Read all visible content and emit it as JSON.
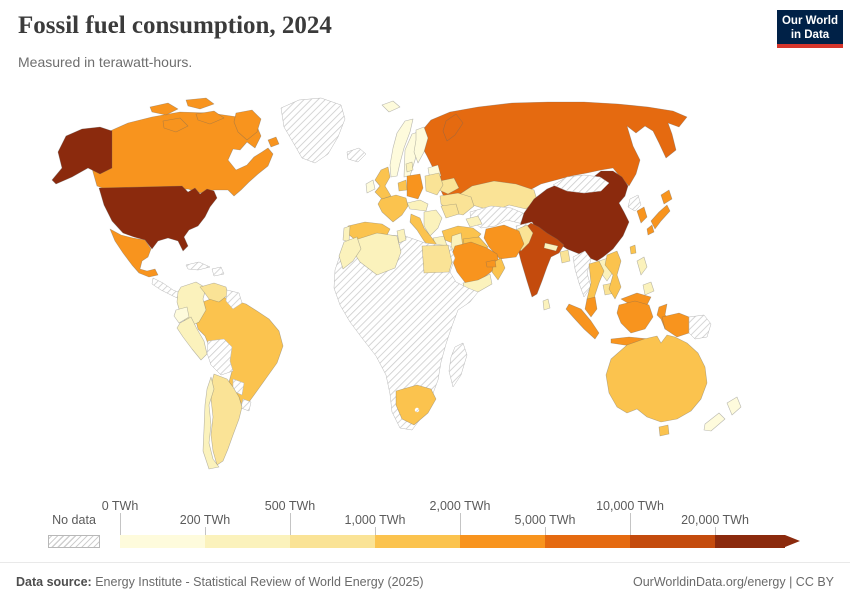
{
  "header": {
    "title": "Fossil fuel consumption, 2024",
    "subtitle": "Measured in terawatt-hours.",
    "logo": {
      "line1": "Our World",
      "line2": "in Data",
      "bg_color": "#002147",
      "accent_color": "#D6352B"
    }
  },
  "chart_data": {
    "type": "choropleth",
    "title": "Fossil fuel consumption, 2024",
    "subtitle": "Measured in terawatt-hours.",
    "unit": "TWh",
    "legend": {
      "no_data_label": "No data",
      "tick_labels": [
        "0 TWh",
        "200 TWh",
        "500 TWh",
        "1,000 TWh",
        "2,000 TWh",
        "5,000 TWh",
        "10,000 TWh",
        "20,000 TWh"
      ],
      "bin_ranges": [
        "0–200",
        "200–500",
        "500–1,000",
        "1,000–2,000",
        "2,000–5,000",
        "5,000–10,000",
        "10,000–20,000",
        "20,000+"
      ],
      "bin_colors": [
        "#FEFBDC",
        "#FBF2BC",
        "#FAE396",
        "#FBC34E",
        "#F8941E",
        "#E56A10",
        "#C44B0D",
        "#8B2A0D"
      ],
      "no_data_hatch_color": "#cfcfcf",
      "open_ended_arrow": true
    },
    "countries": [
      {
        "id": "usa",
        "name": "United States",
        "bin": 7
      },
      {
        "id": "canada",
        "name": "Canada",
        "bin": 4
      },
      {
        "id": "mexico",
        "name": "Mexico",
        "bin": 4
      },
      {
        "id": "central-america",
        "name": "Central America",
        "bin": null
      },
      {
        "id": "cuba",
        "name": "Cuba",
        "bin": null
      },
      {
        "id": "hispaniola",
        "name": "Hispaniola",
        "bin": null
      },
      {
        "id": "greenland",
        "name": "Greenland",
        "bin": null
      },
      {
        "id": "iceland",
        "name": "Iceland",
        "bin": null
      },
      {
        "id": "brazil",
        "name": "Brazil",
        "bin": 3
      },
      {
        "id": "colombia",
        "name": "Colombia",
        "bin": 1
      },
      {
        "id": "venezuela",
        "name": "Venezuela",
        "bin": 2
      },
      {
        "id": "guyanas",
        "name": "Guyanas",
        "bin": null
      },
      {
        "id": "ecuador",
        "name": "Ecuador",
        "bin": 0
      },
      {
        "id": "peru",
        "name": "Peru",
        "bin": 1
      },
      {
        "id": "bolivia",
        "name": "Bolivia",
        "bin": null
      },
      {
        "id": "paraguay",
        "name": "Paraguay",
        "bin": null
      },
      {
        "id": "uruguay",
        "name": "Uruguay",
        "bin": null
      },
      {
        "id": "argentina",
        "name": "Argentina",
        "bin": 2
      },
      {
        "id": "chile",
        "name": "Chile",
        "bin": 1
      },
      {
        "id": "norway",
        "name": "Norway",
        "bin": 0
      },
      {
        "id": "sweden",
        "name": "Sweden",
        "bin": 0
      },
      {
        "id": "finland",
        "name": "Finland",
        "bin": 0
      },
      {
        "id": "denmark",
        "name": "Denmark",
        "bin": 1
      },
      {
        "id": "baltics",
        "name": "Baltic states",
        "bin": 0
      },
      {
        "id": "belarus",
        "name": "Belarus",
        "bin": 2
      },
      {
        "id": "ukraine",
        "name": "Ukraine",
        "bin": 2
      },
      {
        "id": "poland",
        "name": "Poland",
        "bin": 2
      },
      {
        "id": "germany",
        "name": "Germany",
        "bin": 4
      },
      {
        "id": "benelux",
        "name": "Benelux",
        "bin": 3
      },
      {
        "id": "uk",
        "name": "United Kingdom",
        "bin": 3
      },
      {
        "id": "ireland",
        "name": "Ireland",
        "bin": 0
      },
      {
        "id": "france",
        "name": "France",
        "bin": 3
      },
      {
        "id": "spain",
        "name": "Spain",
        "bin": 3
      },
      {
        "id": "portugal",
        "name": "Portugal",
        "bin": 1
      },
      {
        "id": "italy",
        "name": "Italy",
        "bin": 3
      },
      {
        "id": "central-europe",
        "name": "Central Europe",
        "bin": 1
      },
      {
        "id": "balkans",
        "name": "Balkans",
        "bin": 1
      },
      {
        "id": "greece",
        "name": "Greece",
        "bin": 1
      },
      {
        "id": "romania",
        "name": "Romania",
        "bin": 2
      },
      {
        "id": "russia",
        "name": "Russia",
        "bin": 5
      },
      {
        "id": "kazakhstan",
        "name": "Kazakhstan",
        "bin": 2
      },
      {
        "id": "central-asia",
        "name": "Central Asia",
        "bin": null
      },
      {
        "id": "turkey",
        "name": "Turkey",
        "bin": 3
      },
      {
        "id": "caucasus",
        "name": "Caucasus",
        "bin": 1
      },
      {
        "id": "iran",
        "name": "Iran",
        "bin": 4
      },
      {
        "id": "iraq",
        "name": "Iraq",
        "bin": 3
      },
      {
        "id": "levant",
        "name": "Levant",
        "bin": 1
      },
      {
        "id": "saudi-arabia",
        "name": "Saudi Arabia",
        "bin": 4
      },
      {
        "id": "yemen",
        "name": "Yemen",
        "bin": 1
      },
      {
        "id": "oman",
        "name": "Oman",
        "bin": 3
      },
      {
        "id": "uae-qatar",
        "name": "UAE / Qatar",
        "bin": 4
      },
      {
        "id": "africa-other",
        "name": "Sub-Saharan Africa",
        "bin": null
      },
      {
        "id": "algeria",
        "name": "Algeria",
        "bin": 1
      },
      {
        "id": "morocco",
        "name": "Morocco",
        "bin": 1
      },
      {
        "id": "tunisia",
        "name": "Tunisia",
        "bin": 1
      },
      {
        "id": "egypt",
        "name": "Egypt",
        "bin": 2
      },
      {
        "id": "south-africa",
        "name": "South Africa",
        "bin": 3
      },
      {
        "id": "lesotho",
        "name": "Lesotho",
        "bin": null
      },
      {
        "id": "madagascar",
        "name": "Madagascar",
        "bin": null
      },
      {
        "id": "india",
        "name": "India",
        "bin": 6
      },
      {
        "id": "pakistan",
        "name": "Pakistan",
        "bin": 2
      },
      {
        "id": "afghanistan",
        "name": "Afghanistan",
        "bin": null
      },
      {
        "id": "nepal",
        "name": "Nepal",
        "bin": 1
      },
      {
        "id": "bangladesh",
        "name": "Bangladesh",
        "bin": 2
      },
      {
        "id": "sri-lanka",
        "name": "Sri Lanka",
        "bin": 1
      },
      {
        "id": "myanmar",
        "name": "Myanmar",
        "bin": null
      },
      {
        "id": "china",
        "name": "China",
        "bin": 7
      },
      {
        "id": "mongolia",
        "name": "Mongolia",
        "bin": null
      },
      {
        "id": "north-korea",
        "name": "North Korea",
        "bin": null
      },
      {
        "id": "south-korea",
        "name": "South Korea",
        "bin": 4
      },
      {
        "id": "japan",
        "name": "Japan",
        "bin": 4
      },
      {
        "id": "taiwan",
        "name": "Taiwan",
        "bin": 3
      },
      {
        "id": "thailand",
        "name": "Thailand",
        "bin": 3
      },
      {
        "id": "laos",
        "name": "Laos",
        "bin": 1
      },
      {
        "id": "cambodia",
        "name": "Cambodia",
        "bin": 2
      },
      {
        "id": "vietnam",
        "name": "Vietnam",
        "bin": 3
      },
      {
        "id": "malaysia",
        "name": "Malaysia",
        "bin": 4
      },
      {
        "id": "indonesia",
        "name": "Indonesia",
        "bin": 4
      },
      {
        "id": "philippines",
        "name": "Philippines",
        "bin": 1
      },
      {
        "id": "papua-new-guinea",
        "name": "Papua New Guinea",
        "bin": null
      },
      {
        "id": "australia",
        "name": "Australia",
        "bin": 3
      },
      {
        "id": "new-zealand",
        "name": "New Zealand",
        "bin": 0
      }
    ]
  },
  "footer": {
    "source_label": "Data source:",
    "source_text": " Energy Institute - Statistical Review of World Energy (2025)",
    "right_text": "OurWorldinData.org/energy | CC BY"
  }
}
